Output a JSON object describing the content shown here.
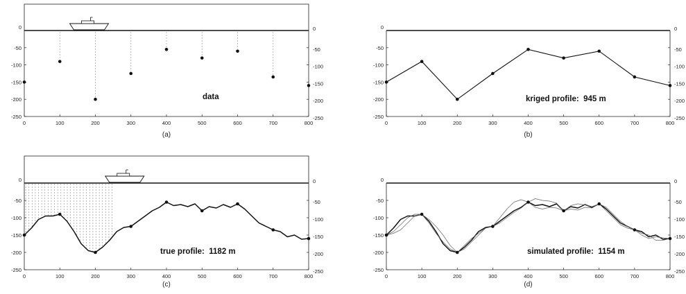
{
  "chart_data": [
    {
      "type": "scatter",
      "panel_label": "(a)",
      "annotation": "data",
      "xlim": [
        0,
        800
      ],
      "ylim": [
        -250,
        0
      ],
      "x_ticks": [
        "0",
        "100",
        "200",
        "300",
        "400",
        "500",
        "600",
        "700",
        "800"
      ],
      "y_ticks": [
        "0",
        "-50",
        "-100",
        "-150",
        "-200",
        "-250"
      ],
      "points": [
        [
          0,
          -150
        ],
        [
          100,
          -90
        ],
        [
          200,
          -200
        ],
        [
          300,
          -125
        ],
        [
          400,
          -55
        ],
        [
          500,
          -80
        ],
        [
          600,
          -60
        ],
        [
          700,
          -135
        ],
        [
          800,
          -160
        ]
      ],
      "has_ship": true,
      "ship_x": 200,
      "has_sky": true
    },
    {
      "type": "line",
      "panel_label": "(b)",
      "annotation": "kriged profile:  945 m",
      "xlim": [
        0,
        800
      ],
      "ylim": [
        -250,
        0
      ],
      "x_ticks": [
        "0",
        "100",
        "200",
        "300",
        "400",
        "500",
        "600",
        "700",
        "800"
      ],
      "y_ticks": [
        "0",
        "-50",
        "-100",
        "-150",
        "-200",
        "-250"
      ],
      "points": [
        [
          0,
          -150
        ],
        [
          100,
          -90
        ],
        [
          200,
          -200
        ],
        [
          300,
          -125
        ],
        [
          400,
          -55
        ],
        [
          500,
          -80
        ],
        [
          600,
          -60
        ],
        [
          700,
          -135
        ],
        [
          800,
          -160
        ]
      ]
    },
    {
      "type": "line",
      "panel_label": "(c)",
      "annotation": "true profile:  1182 m",
      "xlim": [
        0,
        800
      ],
      "ylim": [
        -250,
        0
      ],
      "x_ticks": [
        "0",
        "100",
        "200",
        "300",
        "400",
        "500",
        "600",
        "700",
        "800"
      ],
      "y_ticks": [
        "0",
        "-50",
        "-100",
        "-150",
        "-200",
        "-250"
      ],
      "points": [
        [
          0,
          -150
        ],
        [
          100,
          -90
        ],
        [
          200,
          -200
        ],
        [
          300,
          -125
        ],
        [
          400,
          -55
        ],
        [
          500,
          -80
        ],
        [
          600,
          -60
        ],
        [
          700,
          -135
        ],
        [
          800,
          -160
        ]
      ],
      "series": [
        {
          "x": [
            0,
            20,
            40,
            60,
            80,
            100,
            120,
            140,
            160,
            180,
            200,
            220,
            240,
            260,
            280,
            300,
            320,
            340,
            360,
            380,
            400,
            420,
            440,
            460,
            480,
            500,
            520,
            540,
            560,
            580,
            600,
            620,
            640,
            660,
            680,
            700,
            720,
            740,
            760,
            780,
            800
          ],
          "y": [
            -150,
            -130,
            -105,
            -95,
            -95,
            -90,
            -110,
            -140,
            -175,
            -195,
            -200,
            -185,
            -165,
            -140,
            -128,
            -125,
            -110,
            -95,
            -80,
            -70,
            -55,
            -65,
            -62,
            -68,
            -60,
            -80,
            -68,
            -72,
            -62,
            -70,
            -60,
            -75,
            -95,
            -115,
            -125,
            -135,
            -140,
            -155,
            -150,
            -162,
            -160
          ]
        }
      ],
      "has_ship": true,
      "ship_x": 300,
      "has_sky": true,
      "has_hatch": true,
      "hatch_x": [
        0,
        250
      ]
    },
    {
      "type": "line",
      "panel_label": "(d)",
      "annotation": "simulated profile:  1154 m",
      "xlim": [
        0,
        800
      ],
      "ylim": [
        -250,
        0
      ],
      "x_ticks": [
        "0",
        "100",
        "200",
        "300",
        "400",
        "500",
        "600",
        "700",
        "800"
      ],
      "y_ticks": [
        "0",
        "-50",
        "-100",
        "-150",
        "-200",
        "-250"
      ],
      "points": [
        [
          0,
          -150
        ],
        [
          100,
          -90
        ],
        [
          200,
          -200
        ],
        [
          300,
          -125
        ],
        [
          400,
          -55
        ],
        [
          500,
          -80
        ],
        [
          600,
          -60
        ],
        [
          700,
          -135
        ],
        [
          800,
          -160
        ]
      ],
      "series": [
        {
          "x": [
            0,
            20,
            40,
            60,
            80,
            100,
            120,
            140,
            160,
            180,
            200,
            220,
            240,
            260,
            280,
            300,
            320,
            340,
            360,
            380,
            400,
            420,
            440,
            460,
            480,
            500,
            520,
            540,
            560,
            580,
            600,
            620,
            640,
            660,
            680,
            700,
            720,
            740,
            760,
            780,
            800
          ],
          "y": [
            -150,
            -130,
            -105,
            -95,
            -95,
            -90,
            -110,
            -140,
            -175,
            -195,
            -200,
            -185,
            -165,
            -140,
            -128,
            -125,
            -110,
            -95,
            -80,
            -70,
            -55,
            -65,
            -62,
            -68,
            -60,
            -80,
            -68,
            -72,
            -62,
            -70,
            -60,
            -75,
            -95,
            -115,
            -125,
            -135,
            -140,
            -155,
            -150,
            -162,
            -160
          ]
        },
        {
          "x": [
            0,
            20,
            40,
            60,
            80,
            100,
            120,
            140,
            160,
            180,
            200,
            220,
            240,
            260,
            280,
            300,
            320,
            340,
            360,
            380,
            400,
            420,
            440,
            460,
            480,
            500,
            520,
            540,
            560,
            580,
            600,
            620,
            640,
            660,
            680,
            700,
            720,
            740,
            760,
            780,
            800
          ],
          "y": [
            -150,
            -145,
            -135,
            -115,
            -95,
            -90,
            -105,
            -125,
            -150,
            -180,
            -200,
            -190,
            -170,
            -150,
            -130,
            -125,
            -100,
            -75,
            -55,
            -48,
            -55,
            -45,
            -50,
            -52,
            -58,
            -80,
            -65,
            -60,
            -63,
            -68,
            -60,
            -70,
            -90,
            -110,
            -125,
            -135,
            -150,
            -160,
            -155,
            -158,
            -160
          ]
        },
        {
          "x": [
            0,
            20,
            40,
            60,
            80,
            100,
            120,
            140,
            160,
            180,
            200,
            220,
            240,
            260,
            280,
            300,
            320,
            340,
            360,
            380,
            400,
            420,
            440,
            460,
            480,
            500,
            520,
            540,
            560,
            580,
            600,
            620,
            640,
            660,
            680,
            700,
            720,
            740,
            760,
            780,
            800
          ],
          "y": [
            -150,
            -140,
            -120,
            -100,
            -90,
            -90,
            -115,
            -145,
            -170,
            -190,
            -200,
            -180,
            -160,
            -145,
            -130,
            -125,
            -115,
            -100,
            -85,
            -72,
            -55,
            -70,
            -75,
            -70,
            -72,
            -80,
            -75,
            -78,
            -70,
            -72,
            -60,
            -80,
            -100,
            -120,
            -130,
            -135,
            -145,
            -150,
            -165,
            -165,
            -160
          ]
        }
      ]
    }
  ]
}
